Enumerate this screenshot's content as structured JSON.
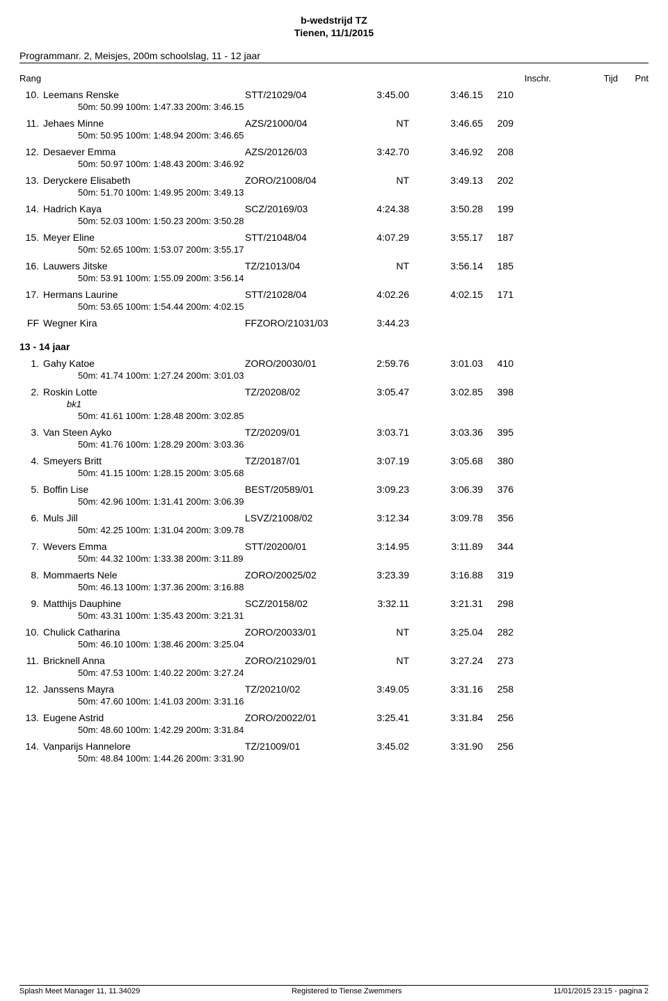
{
  "header": {
    "title": "b-wedstrijd TZ",
    "subtitle": "Tienen, 11/1/2015"
  },
  "program": "Programmanr. 2, Meisjes, 200m schoolslag, 11 - 12 jaar",
  "columns": {
    "rang": "Rang",
    "inschr": "Inschr.",
    "tijd": "Tijd",
    "pnt": "Pnt"
  },
  "groups": [
    {
      "label": null,
      "rows": [
        {
          "rank": "10.",
          "name": "Leemans Renske",
          "code": "STT/21029/04",
          "entry": "3:45.00",
          "time": "3:46.15",
          "pnt": "210",
          "splits": "50m:    50.99   100m:   1:47.33   200m:   3:46.15"
        },
        {
          "rank": "11.",
          "name": "Jehaes Minne",
          "code": "AZS/21000/04",
          "entry": "NT",
          "time": "3:46.65",
          "pnt": "209",
          "splits": "50m:    50.95   100m:   1:48.94   200m:   3:46.65"
        },
        {
          "rank": "12.",
          "name": "Desaever Emma",
          "code": "AZS/20126/03",
          "entry": "3:42.70",
          "time": "3:46.92",
          "pnt": "208",
          "splits": "50m:    50.97   100m:   1:48.43   200m:   3:46.92"
        },
        {
          "rank": "13.",
          "name": "Deryckere Elisabeth",
          "code": "ZORO/21008/04",
          "entry": "NT",
          "time": "3:49.13",
          "pnt": "202",
          "splits": "50m:    51.70   100m:   1:49.95   200m:   3:49.13"
        },
        {
          "rank": "14.",
          "name": "Hadrich Kaya",
          "code": "SCZ/20169/03",
          "entry": "4:24.38",
          "time": "3:50.28",
          "pnt": "199",
          "splits": "50m:    52.03   100m:   1:50.23   200m:   3:50.28"
        },
        {
          "rank": "15.",
          "name": "Meyer Eline",
          "code": "STT/21048/04",
          "entry": "4:07.29",
          "time": "3:55.17",
          "pnt": "187",
          "splits": "50m:    52.65   100m:   1:53.07   200m:   3:55.17"
        },
        {
          "rank": "16.",
          "name": "Lauwers Jitske",
          "code": "TZ/21013/04",
          "entry": "NT",
          "time": "3:56.14",
          "pnt": "185",
          "splits": "50m:    53.91   100m:   1:55.09   200m:   3:56.14"
        },
        {
          "rank": "17.",
          "name": "Hermans Laurine",
          "code": "STT/21028/04",
          "entry": "4:02.26",
          "time": "4:02.15",
          "pnt": "171",
          "splits": "50m:    53.65   100m:   1:54.44   200m:   4:02.15"
        },
        {
          "rank": "FF",
          "name": "Wegner Kira",
          "code": "FFZORO/21031/03",
          "entry": "3:44.23",
          "time": "",
          "pnt": "",
          "splits": null
        }
      ]
    },
    {
      "label": "13 - 14 jaar",
      "rows": [
        {
          "rank": "1.",
          "name": "Gahy Katoe",
          "code": "ZORO/20030/01",
          "entry": "2:59.76",
          "time": "3:01.03",
          "pnt": "410",
          "splits": "50m:    41.74   100m:   1:27.24   200m:   3:01.03"
        },
        {
          "rank": "2.",
          "name": "Roskin Lotte",
          "code": "TZ/20208/02",
          "entry": "3:05.47",
          "time": "3:02.85",
          "pnt": "398",
          "note": "bk1",
          "splits": "50m:    41.61   100m:   1:28.48   200m:   3:02.85"
        },
        {
          "rank": "3.",
          "name": "Van Steen Ayko",
          "code": "TZ/20209/01",
          "entry": "3:03.71",
          "time": "3:03.36",
          "pnt": "395",
          "splits": "50m:    41.76   100m:   1:28.29   200m:   3:03.36"
        },
        {
          "rank": "4.",
          "name": "Smeyers Britt",
          "code": "TZ/20187/01",
          "entry": "3:07.19",
          "time": "3:05.68",
          "pnt": "380",
          "splits": "50m:    41.15   100m:   1:28.15   200m:   3:05.68"
        },
        {
          "rank": "5.",
          "name": "Boffin Lise",
          "code": "BEST/20589/01",
          "entry": "3:09.23",
          "time": "3:06.39",
          "pnt": "376",
          "splits": "50m:    42.96   100m:   1:31.41   200m:   3:06.39"
        },
        {
          "rank": "6.",
          "name": "Muls Jill",
          "code": "LSVZ/21008/02",
          "entry": "3:12.34",
          "time": "3:09.78",
          "pnt": "356",
          "splits": "50m:    42.25   100m:   1:31.04   200m:   3:09.78"
        },
        {
          "rank": "7.",
          "name": "Wevers Emma",
          "code": "STT/20200/01",
          "entry": "3:14.95",
          "time": "3:11.89",
          "pnt": "344",
          "splits": "50m:    44.32   100m:   1:33.38   200m:   3:11.89"
        },
        {
          "rank": "8.",
          "name": "Mommaerts Nele",
          "code": "ZORO/20025/02",
          "entry": "3:23.39",
          "time": "3:16.88",
          "pnt": "319",
          "splits": "50m:    46.13   100m:   1:37.36   200m:   3:16.88"
        },
        {
          "rank": "9.",
          "name": "Matthijs Dauphine",
          "code": "SCZ/20158/02",
          "entry": "3:32.11",
          "time": "3:21.31",
          "pnt": "298",
          "splits": "50m:    43.31   100m:   1:35.43   200m:   3:21.31"
        },
        {
          "rank": "10.",
          "name": "Chulick Catharina",
          "code": "ZORO/20033/01",
          "entry": "NT",
          "time": "3:25.04",
          "pnt": "282",
          "splits": "50m:    46.10   100m:   1:38.46   200m:   3:25.04"
        },
        {
          "rank": "11.",
          "name": "Bricknell Anna",
          "code": "ZORO/21029/01",
          "entry": "NT",
          "time": "3:27.24",
          "pnt": "273",
          "splits": "50m:    47.53   100m:   1:40.22   200m:   3:27.24"
        },
        {
          "rank": "12.",
          "name": "Janssens Mayra",
          "code": "TZ/20210/02",
          "entry": "3:49.05",
          "time": "3:31.16",
          "pnt": "258",
          "splits": "50m:    47.60   100m:   1:41.03   200m:   3:31.16"
        },
        {
          "rank": "13.",
          "name": "Eugene Astrid",
          "code": "ZORO/20022/01",
          "entry": "3:25.41",
          "time": "3:31.84",
          "pnt": "256",
          "splits": "50m:    48.60   100m:   1:42.29   200m:   3:31.84"
        },
        {
          "rank": "14.",
          "name": "Vanparijs Hannelore",
          "code": "TZ/21009/01",
          "entry": "3:45.02",
          "time": "3:31.90",
          "pnt": "256",
          "splits": "50m:    48.84   100m:   1:44.26   200m:   3:31.90"
        }
      ]
    }
  ],
  "footer": {
    "left": "Splash Meet Manager 11, 11.34029",
    "center": "Registered to Tiense Zwemmers",
    "right": "11/01/2015 23:15 - pagina 2"
  }
}
